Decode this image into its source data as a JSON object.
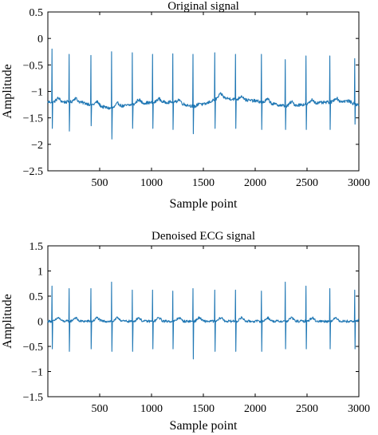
{
  "chart_data": [
    {
      "type": "line",
      "title": "Original signal",
      "xlabel": "Sample point",
      "ylabel": "Amplitude",
      "xlim": [
        0,
        3000
      ],
      "ylim": [
        -2.5,
        0.5
      ],
      "xticks": [
        500,
        1000,
        1500,
        2000,
        2500,
        3000
      ],
      "yticks": [
        0.5,
        0,
        -0.5,
        -1,
        -1.5,
        -2,
        -2.5
      ],
      "grid": false,
      "color": "#1f77b4",
      "series": [
        {
          "baseline": -1.2,
          "baseline_wander_points": [
            [
              0,
              -1.2
            ],
            [
              300,
              -1.2
            ],
            [
              600,
              -1.32
            ],
            [
              900,
              -1.22
            ],
            [
              1200,
              -1.2
            ],
            [
              1450,
              -1.3
            ],
            [
              1650,
              -1.12
            ],
            [
              2000,
              -1.18
            ],
            [
              2300,
              -1.28
            ],
            [
              2600,
              -1.22
            ],
            [
              2900,
              -1.18
            ],
            [
              3000,
              -1.28
            ]
          ],
          "r_peaks": [
            [
              40,
              -0.2,
              -1.7
            ],
            [
              205,
              -0.3,
              -1.75
            ],
            [
              415,
              -0.32,
              -1.65
            ],
            [
              615,
              -0.25,
              -1.9
            ],
            [
              815,
              -0.27,
              -1.7
            ],
            [
              1010,
              -0.3,
              -1.7
            ],
            [
              1205,
              -0.29,
              -1.72
            ],
            [
              1400,
              -0.3,
              -1.8
            ],
            [
              1610,
              -0.27,
              -1.7
            ],
            [
              1810,
              -0.3,
              -1.7
            ],
            [
              2060,
              -0.3,
              -1.72
            ],
            [
              2290,
              -0.4,
              -1.72
            ],
            [
              2490,
              -0.33,
              -1.72
            ],
            [
              2720,
              -0.33,
              -1.72
            ],
            [
              2960,
              -0.38,
              -1.62
            ]
          ]
        }
      ]
    },
    {
      "type": "line",
      "title": "Denoised ECG signal",
      "xlabel": "Sample point",
      "ylabel": "Amplitude",
      "xlim": [
        0,
        3000
      ],
      "ylim": [
        -1.5,
        1.5
      ],
      "xticks": [
        500,
        1000,
        1500,
        2000,
        2500,
        3000
      ],
      "yticks": [
        1.5,
        1,
        0.5,
        0,
        -0.5,
        -1,
        -1.5
      ],
      "grid": false,
      "color": "#1f77b4",
      "series": [
        {
          "baseline": 0,
          "baseline_wander_points": [
            [
              0,
              0
            ],
            [
              3000,
              0
            ]
          ],
          "r_peaks": [
            [
              40,
              0.7,
              -0.55
            ],
            [
              205,
              0.65,
              -0.6
            ],
            [
              415,
              0.65,
              -0.55
            ],
            [
              615,
              0.78,
              -0.6
            ],
            [
              815,
              0.62,
              -0.6
            ],
            [
              1010,
              0.62,
              -0.55
            ],
            [
              1205,
              0.6,
              -0.55
            ],
            [
              1400,
              0.65,
              -0.75
            ],
            [
              1610,
              0.62,
              -0.6
            ],
            [
              1810,
              0.62,
              -0.6
            ],
            [
              2060,
              0.6,
              -0.6
            ],
            [
              2290,
              0.78,
              -0.55
            ],
            [
              2490,
              0.7,
              -0.55
            ],
            [
              2720,
              0.65,
              -0.55
            ],
            [
              2960,
              0.62,
              -0.55
            ]
          ]
        }
      ]
    }
  ]
}
